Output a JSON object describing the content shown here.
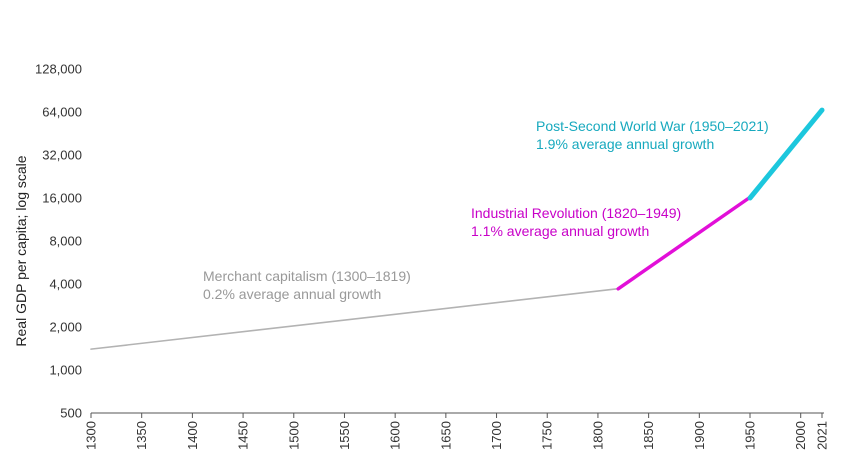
{
  "chart_data": {
    "type": "line",
    "ylabel": "Real GDP per capita; log scale",
    "xlabel": "",
    "y_scale": "log2",
    "ylim": [
      500,
      128000
    ],
    "xlim": [
      1300,
      2021
    ],
    "y_ticks": [
      "500",
      "1,000",
      "2,000",
      "4,000",
      "8,000",
      "16,000",
      "32,000",
      "64,000",
      "128,000"
    ],
    "y_tick_values": [
      500,
      1000,
      2000,
      4000,
      8000,
      16000,
      32000,
      64000,
      128000
    ],
    "x_ticks": [
      "1300",
      "1350",
      "1400",
      "1450",
      "1500",
      "1550",
      "1600",
      "1650",
      "1700",
      "1750",
      "1800",
      "1850",
      "1900",
      "1950",
      "2000",
      "2021"
    ],
    "x_tick_values": [
      1300,
      1350,
      1400,
      1450,
      1500,
      1550,
      1600,
      1650,
      1700,
      1750,
      1800,
      1850,
      1900,
      1950,
      2000,
      2021
    ],
    "series": [
      {
        "x": [
          1300,
          1819
        ],
        "values": [
          1400,
          3700
        ],
        "color": "#b3b3b3",
        "annotation": [
          "Merchant capitalism (1300–1819)",
          "0.2% average annual growth"
        ],
        "annotation_color": "#999999"
      },
      {
        "x": [
          1820,
          1949
        ],
        "values": [
          3700,
          16000
        ],
        "color": "#e20fd8",
        "annotation": [
          "Industrial Revolution (1820–1949)",
          "1.1% average annual growth"
        ],
        "annotation_color": "#c800c8"
      },
      {
        "x": [
          1950,
          2021
        ],
        "values": [
          16000,
          66000
        ],
        "color": "#1cc7dd",
        "annotation": [
          "Post-Second World War (1950–2021)",
          "1.9% average annual growth"
        ],
        "annotation_color": "#17a9be"
      }
    ]
  }
}
